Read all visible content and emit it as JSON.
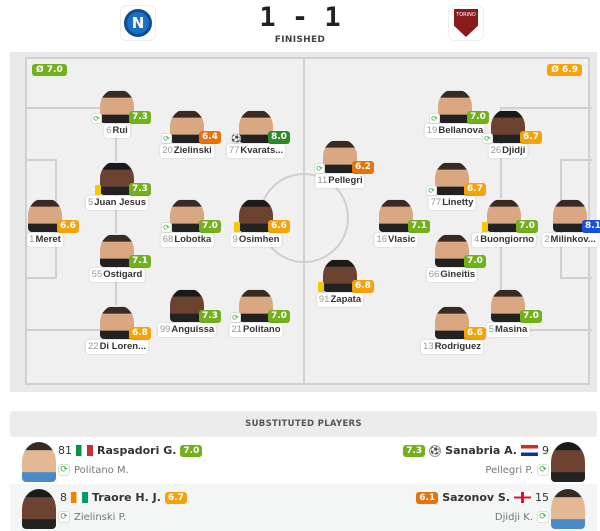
{
  "match": {
    "home": "Napoli",
    "away": "Torino",
    "score": "1 - 1",
    "status": "FINISHED",
    "home_logo_letter": "N",
    "away_logo_text": "TORINO"
  },
  "colors": {
    "green": "#72b01d",
    "dark_green": "#2c8c2c",
    "yellow_orange": "#f5a30b",
    "orange": "#e8730c",
    "blue": "#1a4fe0"
  },
  "pitch": {
    "home_avg": "Ø 7.0",
    "away_avg": "Ø 6.9"
  },
  "home_players": [
    {
      "num": "6",
      "name": "Rui",
      "rating": "7.3",
      "icon": "substitution-icon"
    },
    {
      "num": "20",
      "name": "Zielinski",
      "rating": "6.4",
      "icon": "substitution-icon"
    },
    {
      "num": "77",
      "name": "Kvarats...",
      "rating": "8.0",
      "icon": "goal-ball-icon"
    },
    {
      "num": "5",
      "name": "Juan Jesus",
      "rating": "7.3",
      "icon": "yellow-card-icon"
    },
    {
      "num": "1",
      "name": "Meret",
      "rating": "6.6",
      "icon": ""
    },
    {
      "num": "68",
      "name": "Lobotka",
      "rating": "7.0",
      "icon": "substitution-icon"
    },
    {
      "num": "9",
      "name": "Osimhen",
      "rating": "6.6",
      "icon": "yellow-card-icon"
    },
    {
      "num": "55",
      "name": "Ostigard",
      "rating": "7.1",
      "icon": ""
    },
    {
      "num": "99",
      "name": "Anguissa",
      "rating": "7.3",
      "icon": ""
    },
    {
      "num": "21",
      "name": "Politano",
      "rating": "7.0",
      "icon": "substitution-icon"
    },
    {
      "num": "22",
      "name": "Di Loren...",
      "rating": "6.8",
      "icon": ""
    }
  ],
  "away_players": [
    {
      "num": "19",
      "name": "Bellanova",
      "rating": "7.0",
      "icon": "substitution-icon"
    },
    {
      "num": "26",
      "name": "Djidji",
      "rating": "6.7",
      "icon": "substitution-icon"
    },
    {
      "num": "11",
      "name": "Pellegri",
      "rating": "6.2",
      "icon": "substitution-icon"
    },
    {
      "num": "77",
      "name": "Linetty",
      "rating": "6.7",
      "icon": "substitution-icon"
    },
    {
      "num": "16",
      "name": "Vlasic",
      "rating": "7.1",
      "icon": ""
    },
    {
      "num": "4",
      "name": "Buongiorno",
      "rating": "7.0",
      "icon": "yellow-card-icon"
    },
    {
      "num": "2",
      "name": "Milinkov...",
      "rating": "8.1",
      "icon": "star-icon"
    },
    {
      "num": "66",
      "name": "Gineitis",
      "rating": "7.0",
      "icon": ""
    },
    {
      "num": "91",
      "name": "Zapata",
      "rating": "6.8",
      "icon": "yellow-card-icon"
    },
    {
      "num": "5",
      "name": "Masina",
      "rating": "7.0",
      "icon": ""
    },
    {
      "num": "13",
      "name": "Rodriguez",
      "rating": "6.6",
      "icon": ""
    }
  ],
  "substitutes": {
    "title": "SUBSTITUTED PLAYERS",
    "rows": [
      {
        "home": {
          "num": "81",
          "name": "Raspadori G.",
          "rating": "7.0",
          "flag": "italy-flag",
          "replaced": "Politano M."
        },
        "away": {
          "num": "9",
          "name": "Sanabria A.",
          "rating": "7.3",
          "flag": "paraguay-flag",
          "replaced": "Pellegri P.",
          "icon": "goal-ball-icon"
        }
      },
      {
        "home": {
          "num": "8",
          "name": "Traore H. J.",
          "rating": "6.7",
          "flag": "ivory-coast-flag",
          "replaced": "Zielinski P."
        },
        "away": {
          "num": "15",
          "name": "Sazonov S.",
          "rating": "6.1",
          "flag": "georgia-flag",
          "replaced": "Djidji K."
        }
      }
    ]
  }
}
